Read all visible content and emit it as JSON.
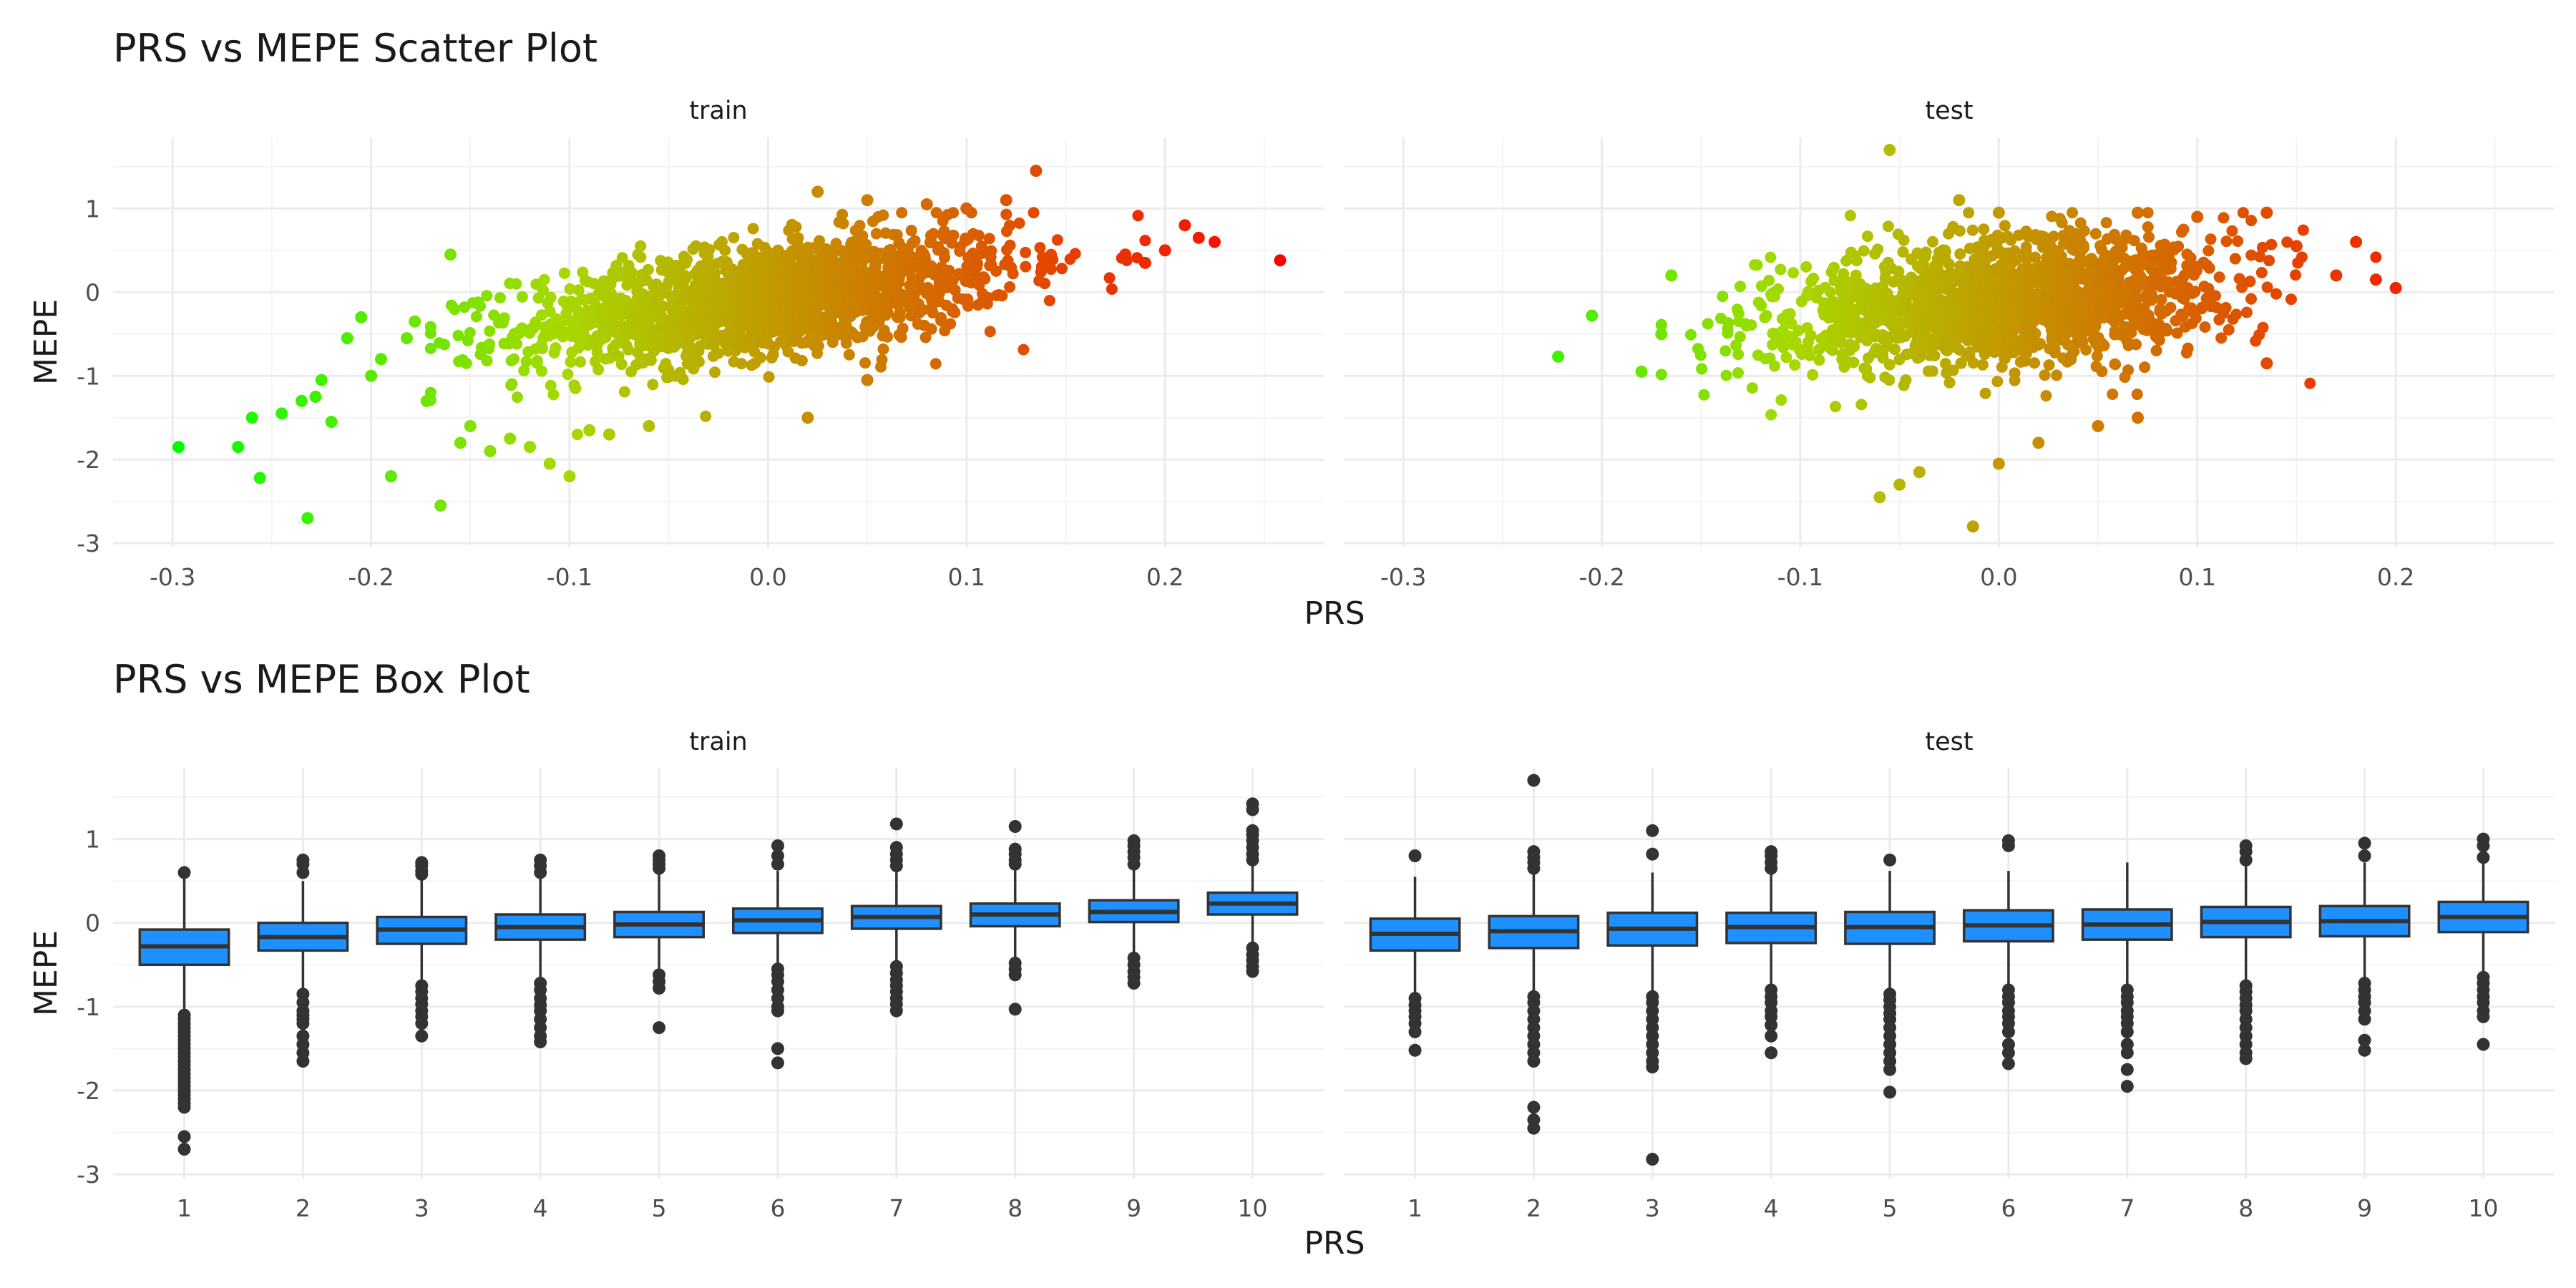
{
  "chart_data": [
    {
      "type": "scatter",
      "title": "PRS vs MEPE Scatter Plot",
      "xlabel": "PRS",
      "ylabel": "MEPE",
      "facets": [
        "train",
        "test"
      ],
      "xlim": [
        -0.33,
        0.28
      ],
      "ylim": [
        -3.05,
        1.85
      ],
      "xticks": [
        -0.3,
        -0.2,
        -0.1,
        0.0,
        0.1,
        0.2
      ],
      "xtick_labels": [
        "-0.3",
        "-0.2",
        "-0.1",
        "0.0",
        "0.1",
        "0.2"
      ],
      "yticks": [
        -3,
        -2,
        -1,
        0,
        1
      ],
      "ytick_labels": [
        "-3",
        "-2",
        "-1",
        "0",
        "1"
      ],
      "grid": true,
      "legend": "none",
      "color_scale": {
        "low": "#00ff00",
        "mid": "#a8d800",
        "high": "#ff0000",
        "low_value": -0.3,
        "high_value": 0.26
      },
      "series": [
        {
          "name": "train",
          "n_core": 1600,
          "trend": {
            "intercept": -0.08,
            "slope": 2.9,
            "sd": 0.34,
            "x_sd": 0.062
          },
          "points": [
            [
              -0.297,
              -1.85
            ],
            [
              -0.267,
              -1.85
            ],
            [
              -0.26,
              -1.5
            ],
            [
              -0.256,
              -2.22
            ],
            [
              -0.245,
              -1.45
            ],
            [
              -0.235,
              -1.3
            ],
            [
              -0.232,
              -2.7
            ],
            [
              -0.228,
              -1.25
            ],
            [
              -0.225,
              -1.05
            ],
            [
              -0.22,
              -1.55
            ],
            [
              -0.212,
              -0.55
            ],
            [
              -0.205,
              -0.3
            ],
            [
              -0.2,
              -1.0
            ],
            [
              -0.195,
              -0.8
            ],
            [
              -0.19,
              -2.2
            ],
            [
              -0.182,
              -0.55
            ],
            [
              -0.178,
              -0.35
            ],
            [
              -0.172,
              -1.3
            ],
            [
              -0.165,
              -2.55
            ],
            [
              -0.16,
              0.45
            ],
            [
              -0.155,
              -1.8
            ],
            [
              -0.15,
              -1.6
            ],
            [
              -0.14,
              -1.9
            ],
            [
              -0.13,
              -1.75
            ],
            [
              -0.12,
              -1.85
            ],
            [
              -0.11,
              -2.05
            ],
            [
              -0.1,
              -2.2
            ],
            [
              -0.09,
              -1.65
            ],
            [
              -0.08,
              -1.7
            ],
            [
              -0.06,
              -1.6
            ],
            [
              0.02,
              -1.5
            ],
            [
              0.05,
              -1.05
            ],
            [
              0.025,
              1.2
            ],
            [
              0.05,
              1.1
            ],
            [
              0.08,
              1.05
            ],
            [
              0.1,
              1.0
            ],
            [
              0.12,
              1.1
            ],
            [
              0.135,
              1.45
            ],
            [
              0.18,
              0.45
            ],
            [
              0.19,
              0.35
            ],
            [
              0.2,
              0.5
            ],
            [
              0.21,
              0.8
            ],
            [
              0.217,
              0.65
            ],
            [
              0.225,
              0.6
            ],
            [
              0.258,
              0.38
            ]
          ]
        },
        {
          "name": "test",
          "n_core": 1500,
          "trend": {
            "intercept": -0.12,
            "slope": 1.9,
            "sd": 0.38,
            "x_sd": 0.058
          },
          "points": [
            [
              -0.222,
              -0.77
            ],
            [
              -0.205,
              -0.28
            ],
            [
              -0.18,
              -0.95
            ],
            [
              -0.17,
              -0.5
            ],
            [
              -0.165,
              0.2
            ],
            [
              -0.06,
              -2.45
            ],
            [
              -0.05,
              -2.3
            ],
            [
              -0.04,
              -2.15
            ],
            [
              -0.013,
              -2.8
            ],
            [
              0.0,
              -2.05
            ],
            [
              0.02,
              -1.8
            ],
            [
              0.05,
              -1.6
            ],
            [
              0.07,
              -1.5
            ],
            [
              -0.055,
              1.7
            ],
            [
              -0.02,
              1.1
            ],
            [
              0.0,
              0.95
            ],
            [
              0.07,
              0.95
            ],
            [
              0.1,
              0.9
            ],
            [
              0.135,
              0.95
            ],
            [
              0.15,
              0.55
            ],
            [
              0.17,
              0.2
            ],
            [
              0.18,
              0.6
            ],
            [
              0.19,
              0.15
            ],
            [
              0.2,
              0.05
            ],
            [
              0.135,
              -0.85
            ]
          ]
        }
      ]
    },
    {
      "type": "box",
      "title": "PRS vs MEPE Box Plot",
      "xlabel": "PRS",
      "ylabel": "MEPE",
      "facets": [
        "train",
        "test"
      ],
      "categories": [
        "1",
        "2",
        "3",
        "4",
        "5",
        "6",
        "7",
        "8",
        "9",
        "10"
      ],
      "ylim": [
        -3.05,
        1.85
      ],
      "yticks": [
        -3,
        -2,
        -1,
        0,
        1
      ],
      "ytick_labels": [
        "-3",
        "-2",
        "-1",
        "0",
        "1"
      ],
      "fill_color": "#1e90ff",
      "grid": true,
      "series": [
        {
          "name": "train",
          "boxes": [
            {
              "q1": -0.5,
              "median": -0.28,
              "q3": -0.08,
              "whisker_low": -1.1,
              "whisker_high": 0.55,
              "outliers": [
                0.6,
                -1.1,
                -1.15,
                -1.2,
                -1.25,
                -1.3,
                -1.35,
                -1.4,
                -1.45,
                -1.5,
                -1.55,
                -1.6,
                -1.65,
                -1.7,
                -1.75,
                -1.8,
                -1.85,
                -1.9,
                -1.95,
                -2.0,
                -2.05,
                -2.1,
                -2.15,
                -2.2,
                -2.55,
                -2.7
              ]
            },
            {
              "q1": -0.33,
              "median": -0.17,
              "q3": 0.0,
              "whisker_low": -0.82,
              "whisker_high": 0.5,
              "outliers": [
                0.75,
                0.7,
                0.6,
                -0.85,
                -0.95,
                -1.05,
                -1.1,
                -1.15,
                -1.2,
                -1.35,
                -1.45,
                -1.55,
                -1.65
              ]
            },
            {
              "q1": -0.25,
              "median": -0.08,
              "q3": 0.07,
              "whisker_low": -0.72,
              "whisker_high": 0.55,
              "outliers": [
                0.72,
                0.68,
                0.62,
                0.58,
                -0.75,
                -0.82,
                -0.9,
                -0.97,
                -1.05,
                -1.12,
                -1.2,
                -1.35
              ]
            },
            {
              "q1": -0.2,
              "median": -0.05,
              "q3": 0.1,
              "whisker_low": -0.7,
              "whisker_high": 0.55,
              "outliers": [
                0.75,
                0.68,
                0.6,
                -0.72,
                -0.8,
                -0.9,
                -0.98,
                -1.05,
                -1.15,
                -1.25,
                -1.35,
                -1.42
              ]
            },
            {
              "q1": -0.17,
              "median": -0.02,
              "q3": 0.13,
              "whisker_low": -0.6,
              "whisker_high": 0.6,
              "outliers": [
                0.8,
                0.75,
                0.7,
                0.65,
                -0.62,
                -0.7,
                -0.78,
                -1.25
              ]
            },
            {
              "q1": -0.12,
              "median": 0.03,
              "q3": 0.17,
              "whisker_low": -0.55,
              "whisker_high": 0.62,
              "outliers": [
                0.92,
                0.8,
                0.7,
                -0.55,
                -0.62,
                -0.7,
                -0.8,
                -0.9,
                -1.0,
                -1.05,
                -1.5,
                -1.67
              ]
            },
            {
              "q1": -0.07,
              "median": 0.07,
              "q3": 0.2,
              "whisker_low": -0.5,
              "whisker_high": 0.65,
              "outliers": [
                1.18,
                0.9,
                0.82,
                0.75,
                0.68,
                -0.52,
                -0.6,
                -0.68,
                -0.75,
                -0.82,
                -0.9,
                -0.97,
                -1.05
              ]
            },
            {
              "q1": -0.04,
              "median": 0.1,
              "q3": 0.23,
              "whisker_low": -0.45,
              "whisker_high": 0.68,
              "outliers": [
                1.15,
                0.88,
                0.82,
                0.75,
                0.7,
                -0.48,
                -0.55,
                -0.62,
                -1.03
              ]
            },
            {
              "q1": 0.01,
              "median": 0.13,
              "q3": 0.27,
              "whisker_low": -0.38,
              "whisker_high": 0.65,
              "outliers": [
                0.98,
                0.92,
                0.85,
                0.78,
                0.7,
                -0.42,
                -0.5,
                -0.58,
                -0.65,
                -0.72
              ]
            },
            {
              "q1": 0.1,
              "median": 0.23,
              "q3": 0.36,
              "whisker_low": -0.27,
              "whisker_high": 0.72,
              "outliers": [
                1.42,
                1.35,
                1.1,
                1.05,
                0.98,
                0.9,
                0.82,
                0.75,
                -0.3,
                -0.38,
                -0.45,
                -0.52,
                -0.58
              ]
            }
          ]
        },
        {
          "name": "test",
          "boxes": [
            {
              "q1": -0.33,
              "median": -0.13,
              "q3": 0.05,
              "whisker_low": -0.88,
              "whisker_high": 0.55,
              "outliers": [
                0.8,
                -0.9,
                -0.98,
                -1.05,
                -1.12,
                -1.2,
                -1.3,
                -1.52
              ]
            },
            {
              "q1": -0.3,
              "median": -0.1,
              "q3": 0.08,
              "whisker_low": -0.85,
              "whisker_high": 0.6,
              "outliers": [
                1.7,
                0.85,
                0.78,
                0.72,
                0.65,
                -0.88,
                -0.95,
                -1.05,
                -1.15,
                -1.25,
                -1.35,
                -1.45,
                -1.55,
                -1.65,
                -2.2,
                -2.35,
                -2.45
              ]
            },
            {
              "q1": -0.27,
              "median": -0.07,
              "q3": 0.12,
              "whisker_low": -0.85,
              "whisker_high": 0.6,
              "outliers": [
                1.1,
                0.82,
                -0.88,
                -0.95,
                -1.05,
                -1.15,
                -1.25,
                -1.35,
                -1.45,
                -1.55,
                -1.65,
                -1.72,
                -2.82
              ]
            },
            {
              "q1": -0.24,
              "median": -0.05,
              "q3": 0.12,
              "whisker_low": -0.78,
              "whisker_high": 0.6,
              "outliers": [
                0.85,
                0.8,
                0.72,
                0.65,
                -0.8,
                -0.88,
                -0.95,
                -1.05,
                -1.12,
                -1.22,
                -1.35,
                -1.55
              ]
            },
            {
              "q1": -0.25,
              "median": -0.05,
              "q3": 0.13,
              "whisker_low": -0.82,
              "whisker_high": 0.62,
              "outliers": [
                0.75,
                -0.85,
                -0.92,
                -1.0,
                -1.08,
                -1.15,
                -1.25,
                -1.35,
                -1.45,
                -1.55,
                -1.65,
                -1.75,
                -2.02
              ]
            },
            {
              "q1": -0.22,
              "median": -0.03,
              "q3": 0.15,
              "whisker_low": -0.78,
              "whisker_high": 0.62,
              "outliers": [
                0.98,
                0.92,
                -0.8,
                -0.88,
                -0.95,
                -1.05,
                -1.12,
                -1.2,
                -1.3,
                -1.45,
                -1.55,
                -1.68
              ]
            },
            {
              "q1": -0.2,
              "median": -0.02,
              "q3": 0.16,
              "whisker_low": -0.75,
              "whisker_high": 0.72,
              "outliers": [
                -0.8,
                -0.88,
                -0.95,
                -1.05,
                -1.12,
                -1.2,
                -1.3,
                -1.45,
                -1.55,
                -1.75,
                -1.95
              ]
            },
            {
              "q1": -0.17,
              "median": 0.01,
              "q3": 0.19,
              "whisker_low": -0.72,
              "whisker_high": 0.7,
              "outliers": [
                0.92,
                0.85,
                0.75,
                -0.75,
                -0.82,
                -0.9,
                -0.98,
                -1.05,
                -1.15,
                -1.25,
                -1.35,
                -1.45,
                -1.55,
                -1.62
              ]
            },
            {
              "q1": -0.16,
              "median": 0.02,
              "q3": 0.2,
              "whisker_low": -0.68,
              "whisker_high": 0.72,
              "outliers": [
                0.95,
                0.8,
                -0.72,
                -0.8,
                -0.88,
                -0.95,
                -1.05,
                -1.15,
                -1.4,
                -1.52
              ]
            },
            {
              "q1": -0.11,
              "median": 0.07,
              "q3": 0.25,
              "whisker_low": -0.62,
              "whisker_high": 0.75,
              "outliers": [
                1.0,
                0.92,
                0.78,
                -0.65,
                -0.72,
                -0.8,
                -0.88,
                -0.95,
                -1.05,
                -1.12,
                -1.45
              ]
            }
          ]
        }
      ]
    }
  ]
}
